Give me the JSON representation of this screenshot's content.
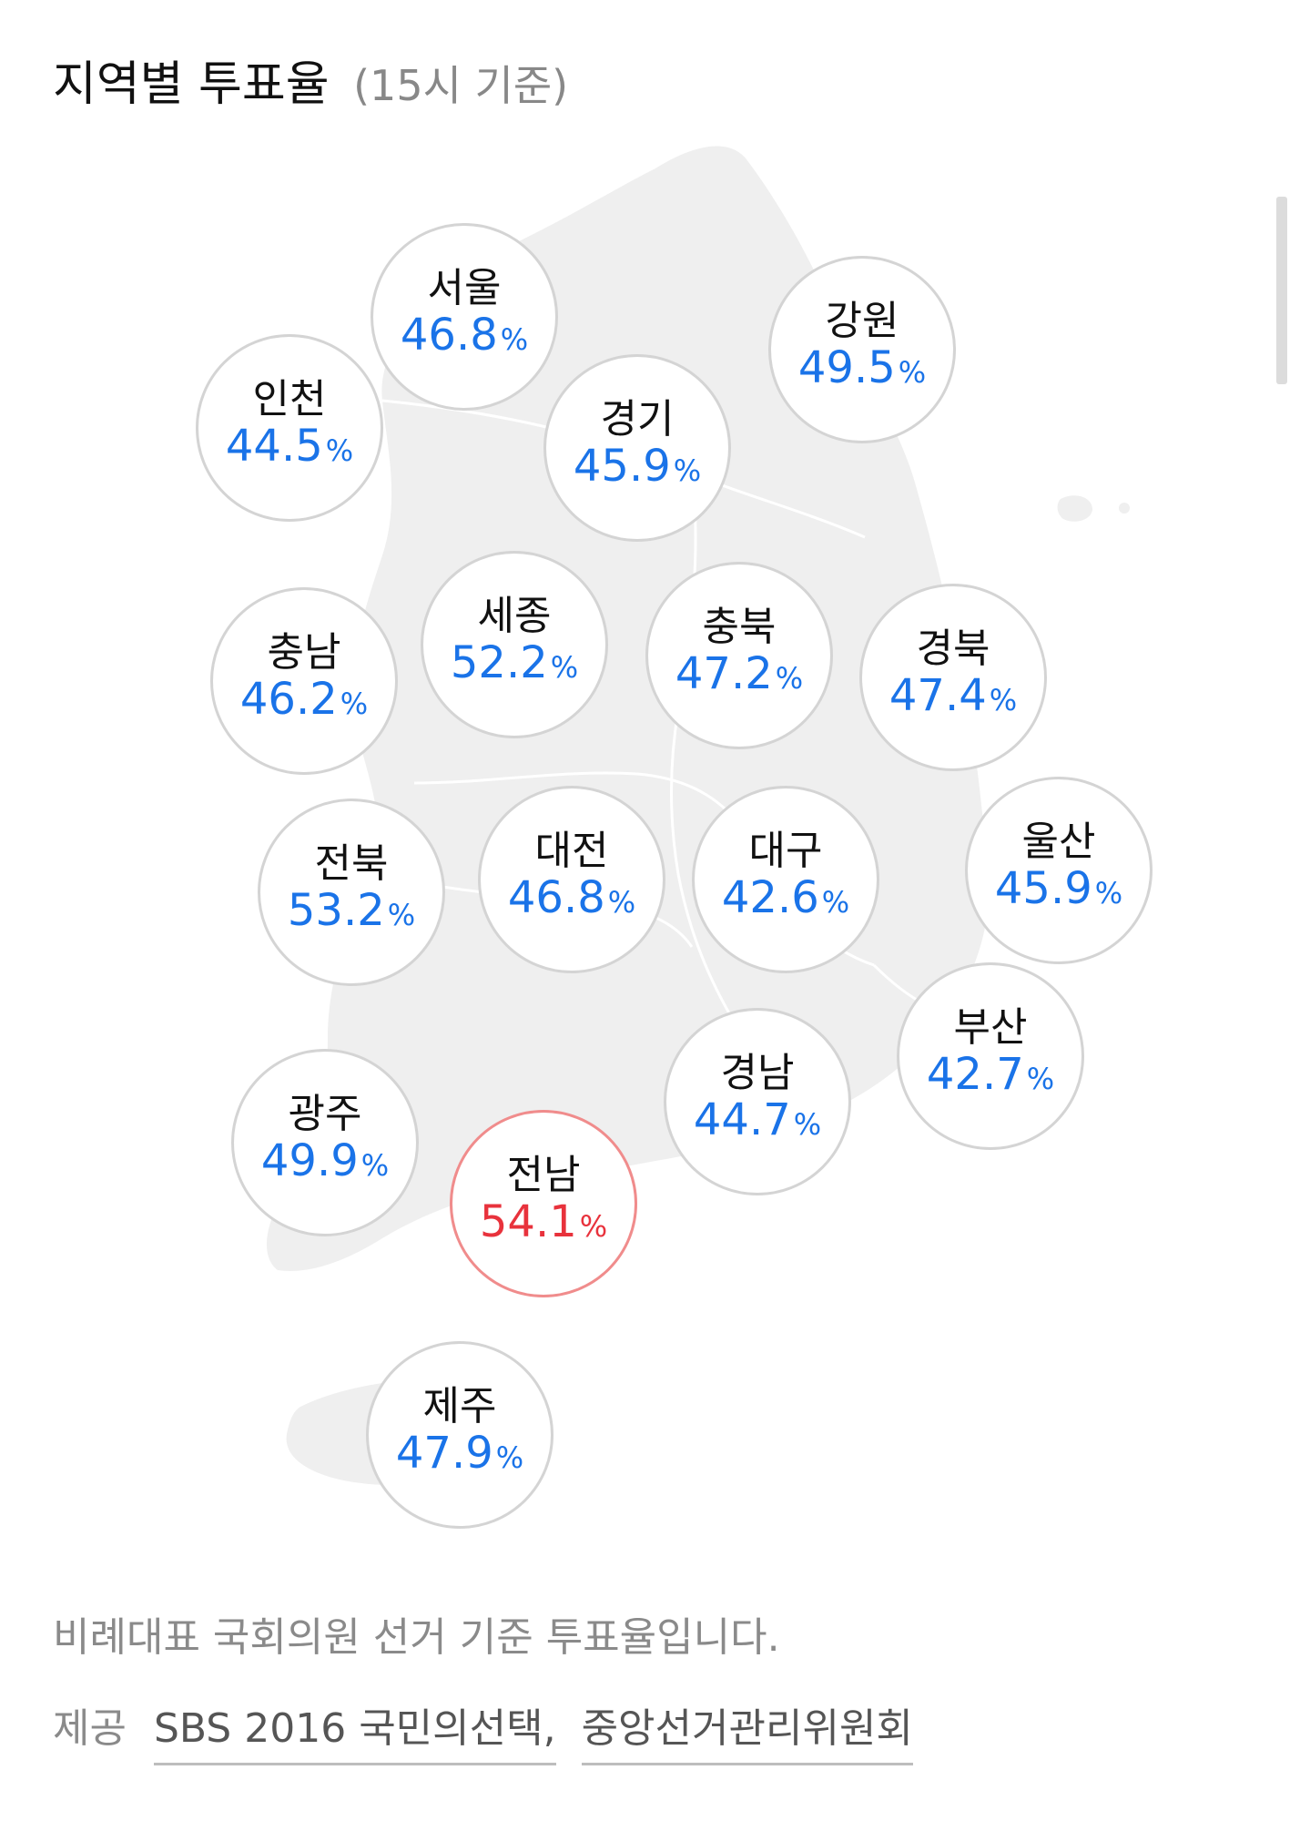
{
  "header": {
    "title": "지역별 투표율",
    "subtitle": "(15시 기준)"
  },
  "percent_sign": "%",
  "colors": {
    "normal": "#1a73e8",
    "highlight": "#e8323c",
    "map_fill": "#efefef",
    "bubble_border": "#d4d4d4"
  },
  "regions": [
    {
      "name": "서울",
      "rate": "46.8"
    },
    {
      "name": "강원",
      "rate": "49.5"
    },
    {
      "name": "인천",
      "rate": "44.5"
    },
    {
      "name": "경기",
      "rate": "45.9"
    },
    {
      "name": "세종",
      "rate": "52.2"
    },
    {
      "name": "충북",
      "rate": "47.2"
    },
    {
      "name": "경북",
      "rate": "47.4"
    },
    {
      "name": "충남",
      "rate": "46.2"
    },
    {
      "name": "전북",
      "rate": "53.2"
    },
    {
      "name": "대전",
      "rate": "46.8"
    },
    {
      "name": "대구",
      "rate": "42.6"
    },
    {
      "name": "울산",
      "rate": "45.9"
    },
    {
      "name": "부산",
      "rate": "42.7"
    },
    {
      "name": "경남",
      "rate": "44.7"
    },
    {
      "name": "광주",
      "rate": "49.9"
    },
    {
      "name": "전남",
      "rate": "54.1",
      "highlight": true
    },
    {
      "name": "제주",
      "rate": "47.9"
    }
  ],
  "footer": {
    "note": "비례대표 국회의원 선거 기준 투표율입니다.",
    "source_label": "제공",
    "sources": [
      "SBS 2016 국민의선택,",
      "중앙선거관리위원회"
    ]
  }
}
